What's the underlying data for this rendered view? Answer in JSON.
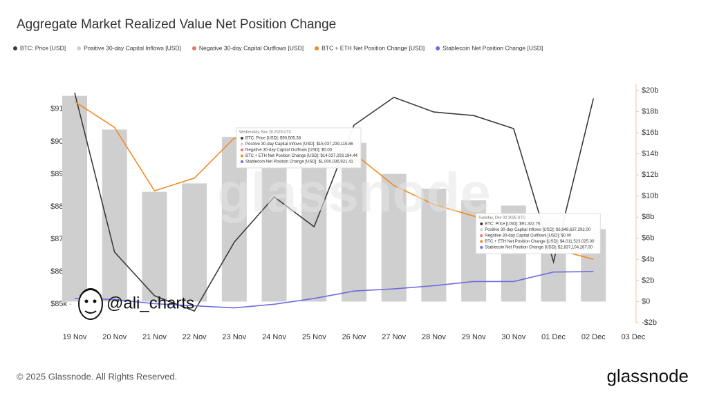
{
  "chart_data": {
    "type": "combo",
    "title": "Aggregate Market Realized Value Net Position Change",
    "categories": [
      "19 Nov",
      "20 Nov",
      "21 Nov",
      "22 Nov",
      "23 Nov",
      "24 Nov",
      "25 Nov",
      "26 Nov",
      "27 Nov",
      "28 Nov",
      "29 Nov",
      "30 Nov",
      "01 Dec",
      "02 Dec",
      "03 Dec"
    ],
    "series": [
      {
        "name": "BTC: Price [USD]",
        "color": "#3a3a3a",
        "type": "line",
        "axis": "y",
        "values": [
          91500,
          86600,
          85260,
          84790,
          86910,
          88300,
          87380,
          90505.38,
          91360,
          90910,
          90800,
          90400,
          86300,
          91322.76,
          null
        ]
      },
      {
        "name": "Positive 30-day Capital Inflows [USD]",
        "color": "#cfcfcf",
        "type": "bar",
        "axis": "y2",
        "values": [
          19.5,
          16.3,
          10.4,
          11.2,
          15.6,
          15.0,
          15.2,
          15.04,
          12.1,
          10.7,
          9.6,
          9.1,
          8.0,
          6.85,
          null
        ]
      },
      {
        "name": "Negative 30-day Capital Outflows [USD]",
        "color": "#e8756a",
        "type": "bar",
        "axis": "y2",
        "values": [
          0,
          0,
          0,
          0,
          0,
          0,
          0,
          0,
          0,
          0,
          0,
          0,
          0,
          0,
          null
        ]
      },
      {
        "name": "BTC + ETH Net Position Change [USD]",
        "color": "#f08a24",
        "type": "line",
        "axis": "y2",
        "values": [
          18.95,
          16.5,
          10.5,
          11.7,
          15.5,
          15.0,
          14.5,
          14.04,
          11.0,
          9.2,
          8.1,
          6.8,
          5.0,
          4.01,
          null
        ]
      },
      {
        "name": "Stablecoin Net Position Change [USD]",
        "color": "#6b6be0",
        "type": "line",
        "axis": "y2",
        "values": [
          0.3,
          0.2,
          -0.2,
          -0.4,
          -0.6,
          -0.25,
          0.3,
          1.0,
          1.2,
          1.5,
          1.9,
          1.9,
          2.8,
          2.84,
          null
        ]
      }
    ],
    "ylim": [
      84430,
      91570
    ],
    "yticks": [
      {
        "value": 85000,
        "label": "$85k"
      },
      {
        "value": 86000,
        "label": "$86k"
      },
      {
        "value": 87000,
        "label": "$87k"
      },
      {
        "value": 88000,
        "label": "$88k"
      },
      {
        "value": 89000,
        "label": "$89k"
      },
      {
        "value": 90000,
        "label": "$90k"
      },
      {
        "value": 91000,
        "label": "$91k"
      }
    ],
    "y2lim": [
      -2,
      20
    ],
    "y2ticks": [
      {
        "value": -2,
        "label": "-$2b"
      },
      {
        "value": 0,
        "label": "$0"
      },
      {
        "value": 2,
        "label": "$2b"
      },
      {
        "value": 4,
        "label": "$4b"
      },
      {
        "value": 6,
        "label": "$6b"
      },
      {
        "value": 8,
        "label": "$8b"
      },
      {
        "value": 10,
        "label": "$10b"
      },
      {
        "value": 12,
        "label": "$12b"
      },
      {
        "value": 14,
        "label": "$14b"
      },
      {
        "value": 16,
        "label": "$16b"
      },
      {
        "value": 18,
        "label": "$18b"
      },
      {
        "value": 20,
        "label": "$20b"
      }
    ],
    "tooltips": [
      {
        "category": 7,
        "header": "Wednesday, Nov 26 2025 UTC",
        "lines": [
          "BTC: Price [USD]: $90,505.38",
          "Positive 30-day Capital Inflows [USD]: $15,037,239,115.86",
          "Negative 30-day Capital Outflows [USD]: $0.00",
          "BTC + ETH Net Position Change [USD]: $14,037,203,194.44",
          "Stablecoin Net Position Change [USD]: $1,000,035,921.41"
        ]
      },
      {
        "category": 13,
        "header": "Tuesday, Dec 02 2025 UTC",
        "lines": [
          "BTC: Price [USD]: $91,322.76",
          "Positive 30-day Capital Inflows [USD]: $6,848,637,292.00",
          "Negative 30-day Capital Outflows [USD]: $0.00",
          "BTC + ETH Net Position Change [USD]: $4,011,523,025.00",
          "Stablecoin Net Position Change [USD]: $2,837,104,267.00"
        ]
      }
    ],
    "watermark": "glassnode",
    "author": "@ali_charts"
  },
  "footer": {
    "copyright": "© 2025 Glassnode. All Rights Reserved.",
    "logo": "glassnode"
  }
}
